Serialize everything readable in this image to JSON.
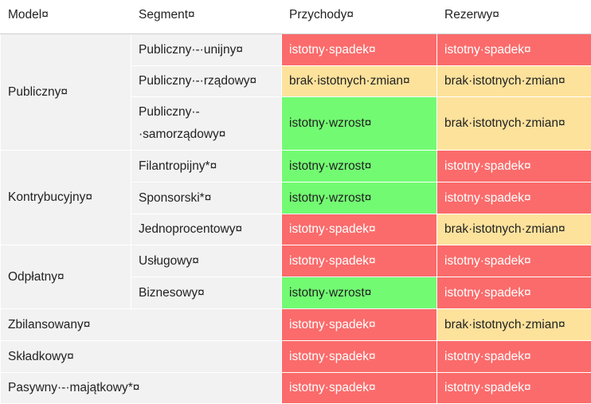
{
  "table": {
    "header": [
      "Model¤",
      "Segment¤",
      "Przychody¤",
      "Rezerwy¤"
    ],
    "groups": [
      {
        "model": "Publiczny¤",
        "rows": [
          {
            "segment": "Publiczny·-·unijny¤",
            "przychody": {
              "text": "istotny·spadek¤",
              "color": "#fb6b6b"
            },
            "rezerwy": {
              "text": "istotny·spadek¤",
              "color": "#fb6b6b"
            }
          },
          {
            "segment": "Publiczny·-·rządowy¤",
            "przychody": {
              "text": "brak·istotnych·zmian¤",
              "color": "#fde29c"
            },
            "rezerwy": {
              "text": "brak·istotnych·zmian¤",
              "color": "#fde29c"
            }
          },
          {
            "segment": "Publiczny·-·samorządowy¤",
            "przychody": {
              "text": "istotny·wzrost¤",
              "color": "#72fb72"
            },
            "rezerwy": {
              "text": "brak·istotnych·zmian¤",
              "color": "#fde29c"
            }
          }
        ]
      },
      {
        "model": "Kontrybucyjny¤",
        "rows": [
          {
            "segment": "Filantropijny*¤",
            "przychody": {
              "text": "istotny·wzrost¤",
              "color": "#72fb72"
            },
            "rezerwy": {
              "text": "istotny·spadek¤",
              "color": "#fb6b6b"
            }
          },
          {
            "segment": "Sponsorski*¤",
            "przychody": {
              "text": "istotny·wzrost¤",
              "color": "#72fb72"
            },
            "rezerwy": {
              "text": "istotny·spadek¤",
              "color": "#fb6b6b"
            }
          },
          {
            "segment": "Jednoprocentowy¤",
            "przychody": {
              "text": "istotny·spadek¤",
              "color": "#fb6b6b"
            },
            "rezerwy": {
              "text": "brak·istotnych·zmian¤",
              "color": "#fde29c"
            }
          }
        ]
      },
      {
        "model": "Odpłatny¤",
        "rows": [
          {
            "segment": "Usługowy¤",
            "przychody": {
              "text": "istotny·spadek¤",
              "color": "#fb6b6b"
            },
            "rezerwy": {
              "text": "istotny·spadek¤",
              "color": "#fb6b6b"
            }
          },
          {
            "segment": "Biznesowy¤",
            "przychody": {
              "text": "istotny·wzrost¤",
              "color": "#72fb72"
            },
            "rezerwy": {
              "text": "istotny·spadek¤",
              "color": "#fb6b6b"
            }
          }
        ]
      },
      {
        "model": "Zbilansowany¤",
        "rows": [
          {
            "przychody": {
              "text": "istotny·spadek¤",
              "color": "#fb6b6b"
            },
            "rezerwy": {
              "text": "brak·istotnych·zmian¤",
              "color": "#fde29c"
            }
          }
        ]
      },
      {
        "model": "Składkowy¤",
        "rows": [
          {
            "przychody": {
              "text": "istotny·spadek¤",
              "color": "#fb6b6b"
            },
            "rezerwy": {
              "text": "istotny·spadek¤",
              "color": "#fb6b6b"
            }
          }
        ]
      },
      {
        "model": "Pasywny·-·majątkowy*¤",
        "rows": [
          {
            "przychody": {
              "text": "istotny·spadek¤",
              "color": "#fb6b6b"
            },
            "rezerwy": {
              "text": "istotny·spadek¤",
              "color": "#fb6b6b"
            }
          }
        ]
      }
    ]
  }
}
